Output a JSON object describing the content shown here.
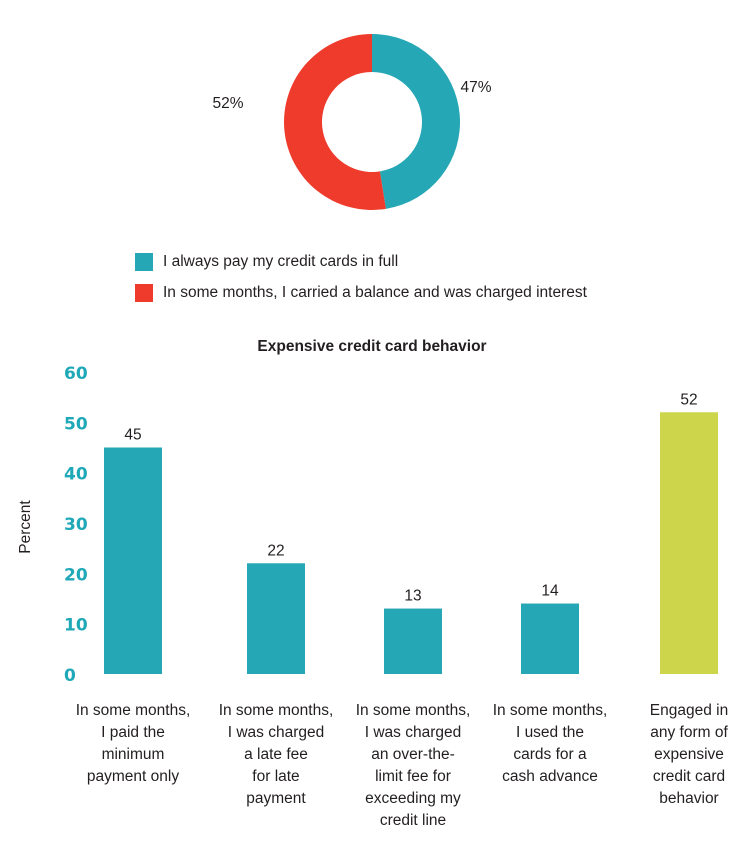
{
  "colors": {
    "teal": "#25a7b5",
    "red": "#ef3b2c",
    "lime": "#cdd64b",
    "axis_text": "#1fa8b8"
  },
  "donut": {
    "type": "pie",
    "style": "donut",
    "slices": [
      {
        "label": "I always pay my credit cards in full",
        "value": 47,
        "display": "47%",
        "color": "#25a7b5"
      },
      {
        "label": "In some months, I carried a balance and was charged interest",
        "value": 52,
        "display": "52%",
        "color": "#ef3b2c"
      }
    ]
  },
  "legend": [
    {
      "label": "I always pay my credit cards in full",
      "color": "#25a7b5"
    },
    {
      "label": "In some months, I carried a balance and was charged interest",
      "color": "#ef3b2c"
    }
  ],
  "chart_data": [
    {
      "type": "pie",
      "categories": [
        "I always pay my credit cards in full",
        "In some months, I carried a balance and was charged interest"
      ],
      "values": [
        47,
        52
      ],
      "data_labels": [
        "47%",
        "52%"
      ]
    },
    {
      "type": "bar",
      "title": "Expensive credit card behavior",
      "ylabel": "Percent",
      "xlabel": "",
      "ylim": [
        0,
        60
      ],
      "yticks": [
        "0",
        "10",
        "20",
        "30",
        "40",
        "50",
        "60"
      ],
      "categories": [
        [
          "In some months,",
          "I paid the",
          "minimum",
          "payment only"
        ],
        [
          "In some months,",
          "I was charged",
          "a late fee",
          "for late",
          "payment"
        ],
        [
          "In some months,",
          "I was charged",
          "an over-the-",
          "limit fee for",
          "exceeding my",
          "credit line"
        ],
        [
          "In some months,",
          "I used the",
          "cards for a",
          "cash advance"
        ],
        [
          "Engaged in",
          "any form of",
          "expensive",
          "credit card",
          "behavior"
        ]
      ],
      "values": [
        45,
        22,
        13,
        14,
        52
      ],
      "data_labels": [
        "45",
        "22",
        "13",
        "14",
        "52"
      ],
      "bar_colors": [
        "#25a7b5",
        "#25a7b5",
        "#25a7b5",
        "#25a7b5",
        "#cdd64b"
      ],
      "grid": false
    }
  ]
}
